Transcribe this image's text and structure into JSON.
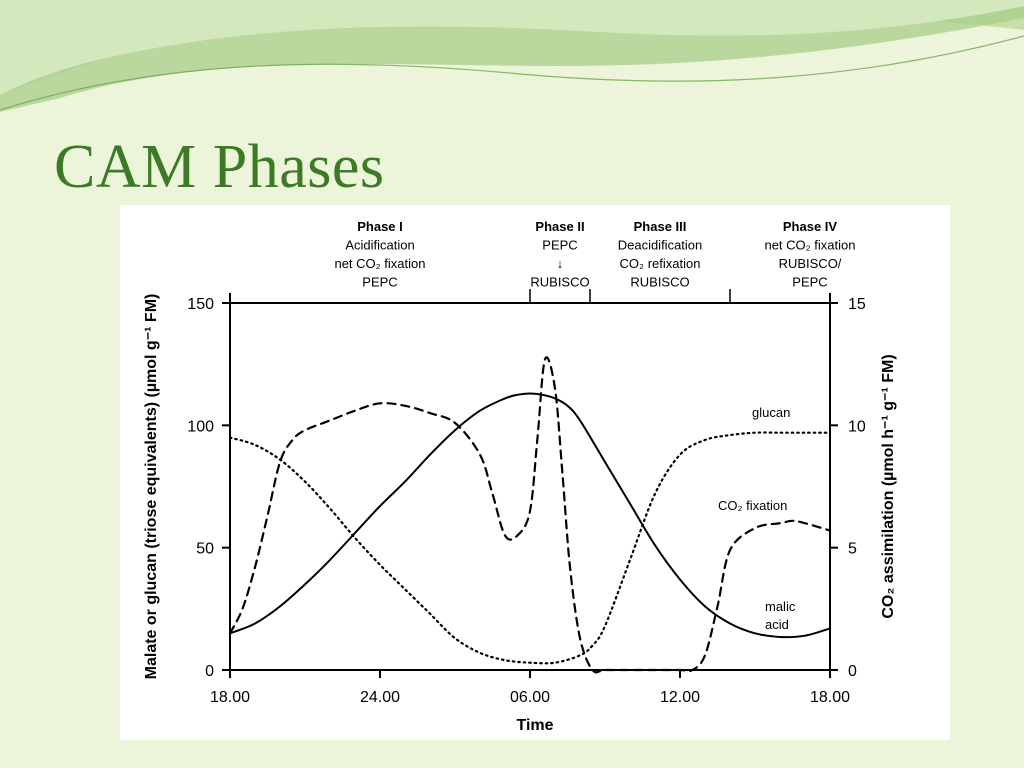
{
  "slide": {
    "title": "CAM Phases",
    "accent_color": "#3d7a26",
    "background_color": "#ecf4d9"
  },
  "chart_data": {
    "type": "line",
    "xlabel": "Time",
    "ylabel_left": "Malate or glucan (triose equivalents) (µmol g⁻¹ FM)",
    "ylabel_right": "CO₂ assimilation (µmol h⁻¹ g⁻¹ FM)",
    "x_tick_labels": [
      "18.00",
      "24.00",
      "06.00",
      "12.00",
      "18.00"
    ],
    "x_tick_hours": [
      0,
      6,
      12,
      18,
      24
    ],
    "xlim_hours": [
      0,
      24
    ],
    "ylim_left": [
      0,
      150
    ],
    "y_ticks_left": [
      0,
      50,
      100,
      150
    ],
    "ylim_right": [
      0,
      15
    ],
    "y_ticks_right": [
      0,
      5,
      10,
      15
    ],
    "phase_boundaries_hours": [
      12,
      14.4,
      20
    ],
    "phases": [
      {
        "lines": [
          "Phase I",
          "Acidification",
          "net CO₂ fixation",
          "PEPC"
        ]
      },
      {
        "lines": [
          "Phase II",
          "PEPC",
          "↓",
          "RUBISCO"
        ]
      },
      {
        "lines": [
          "Phase III",
          "Deacidification",
          "CO₂ refixation",
          "RUBISCO"
        ]
      },
      {
        "lines": [
          "Phase IV",
          "net CO₂ fixation",
          "RUBISCO/",
          "PEPC"
        ]
      }
    ],
    "annotations": {
      "glucan": "glucan",
      "co2_fixation": "CO₂ fixation",
      "malic_1": "malic",
      "malic_2": "acid"
    },
    "series": [
      {
        "key": "malic_acid",
        "style": "solid",
        "axis": "left",
        "x": [
          0,
          1,
          2,
          3,
          4,
          5,
          6,
          7,
          8,
          9,
          10,
          11,
          11.5,
          12,
          12.5,
          13,
          13.5,
          14,
          15,
          16,
          17,
          18,
          19,
          20,
          21,
          22,
          23,
          24
        ],
        "y": [
          15,
          19,
          26,
          35,
          45,
          56,
          67,
          77,
          88,
          98,
          106,
          111,
          112.5,
          113,
          112.5,
          111,
          108,
          102,
          85,
          68,
          51,
          37,
          26,
          19,
          15,
          13.5,
          14,
          17
        ]
      },
      {
        "key": "glucan",
        "style": "dotted",
        "axis": "left",
        "x": [
          0,
          1,
          2,
          3,
          4,
          5,
          6,
          7,
          8,
          9,
          10,
          11,
          12,
          13,
          14,
          14.5,
          15,
          16,
          17,
          18,
          19,
          20,
          21,
          22,
          23,
          24
        ],
        "y": [
          95,
          92,
          86,
          77,
          66,
          54,
          43,
          33,
          23,
          13,
          7,
          4,
          3,
          3,
          6,
          10,
          18,
          45,
          72,
          88,
          94,
          96,
          97,
          97,
          97,
          97
        ]
      },
      {
        "key": "co2_fixation",
        "style": "dashed",
        "axis": "right",
        "x": [
          0,
          0.5,
          1,
          1.5,
          2,
          2.5,
          3,
          4,
          5,
          6,
          7,
          8,
          9,
          10,
          10.5,
          11,
          11.5,
          12,
          12.3,
          12.6,
          13,
          13.3,
          13.6,
          14,
          14.5,
          15,
          16,
          17,
          18,
          18.5,
          19,
          19.5,
          20,
          21,
          22,
          22.5,
          23,
          24
        ],
        "y": [
          1.5,
          2.5,
          4.2,
          6.3,
          8.5,
          9.4,
          9.8,
          10.2,
          10.6,
          10.9,
          10.8,
          10.5,
          10.1,
          8.8,
          7.2,
          5.5,
          5.5,
          6.5,
          9.5,
          12.7,
          11.5,
          8,
          4.2,
          1.3,
          0,
          0,
          0,
          0,
          0,
          0,
          0.6,
          2.6,
          4.9,
          5.8,
          6,
          6.1,
          6,
          5.7
        ]
      }
    ]
  }
}
